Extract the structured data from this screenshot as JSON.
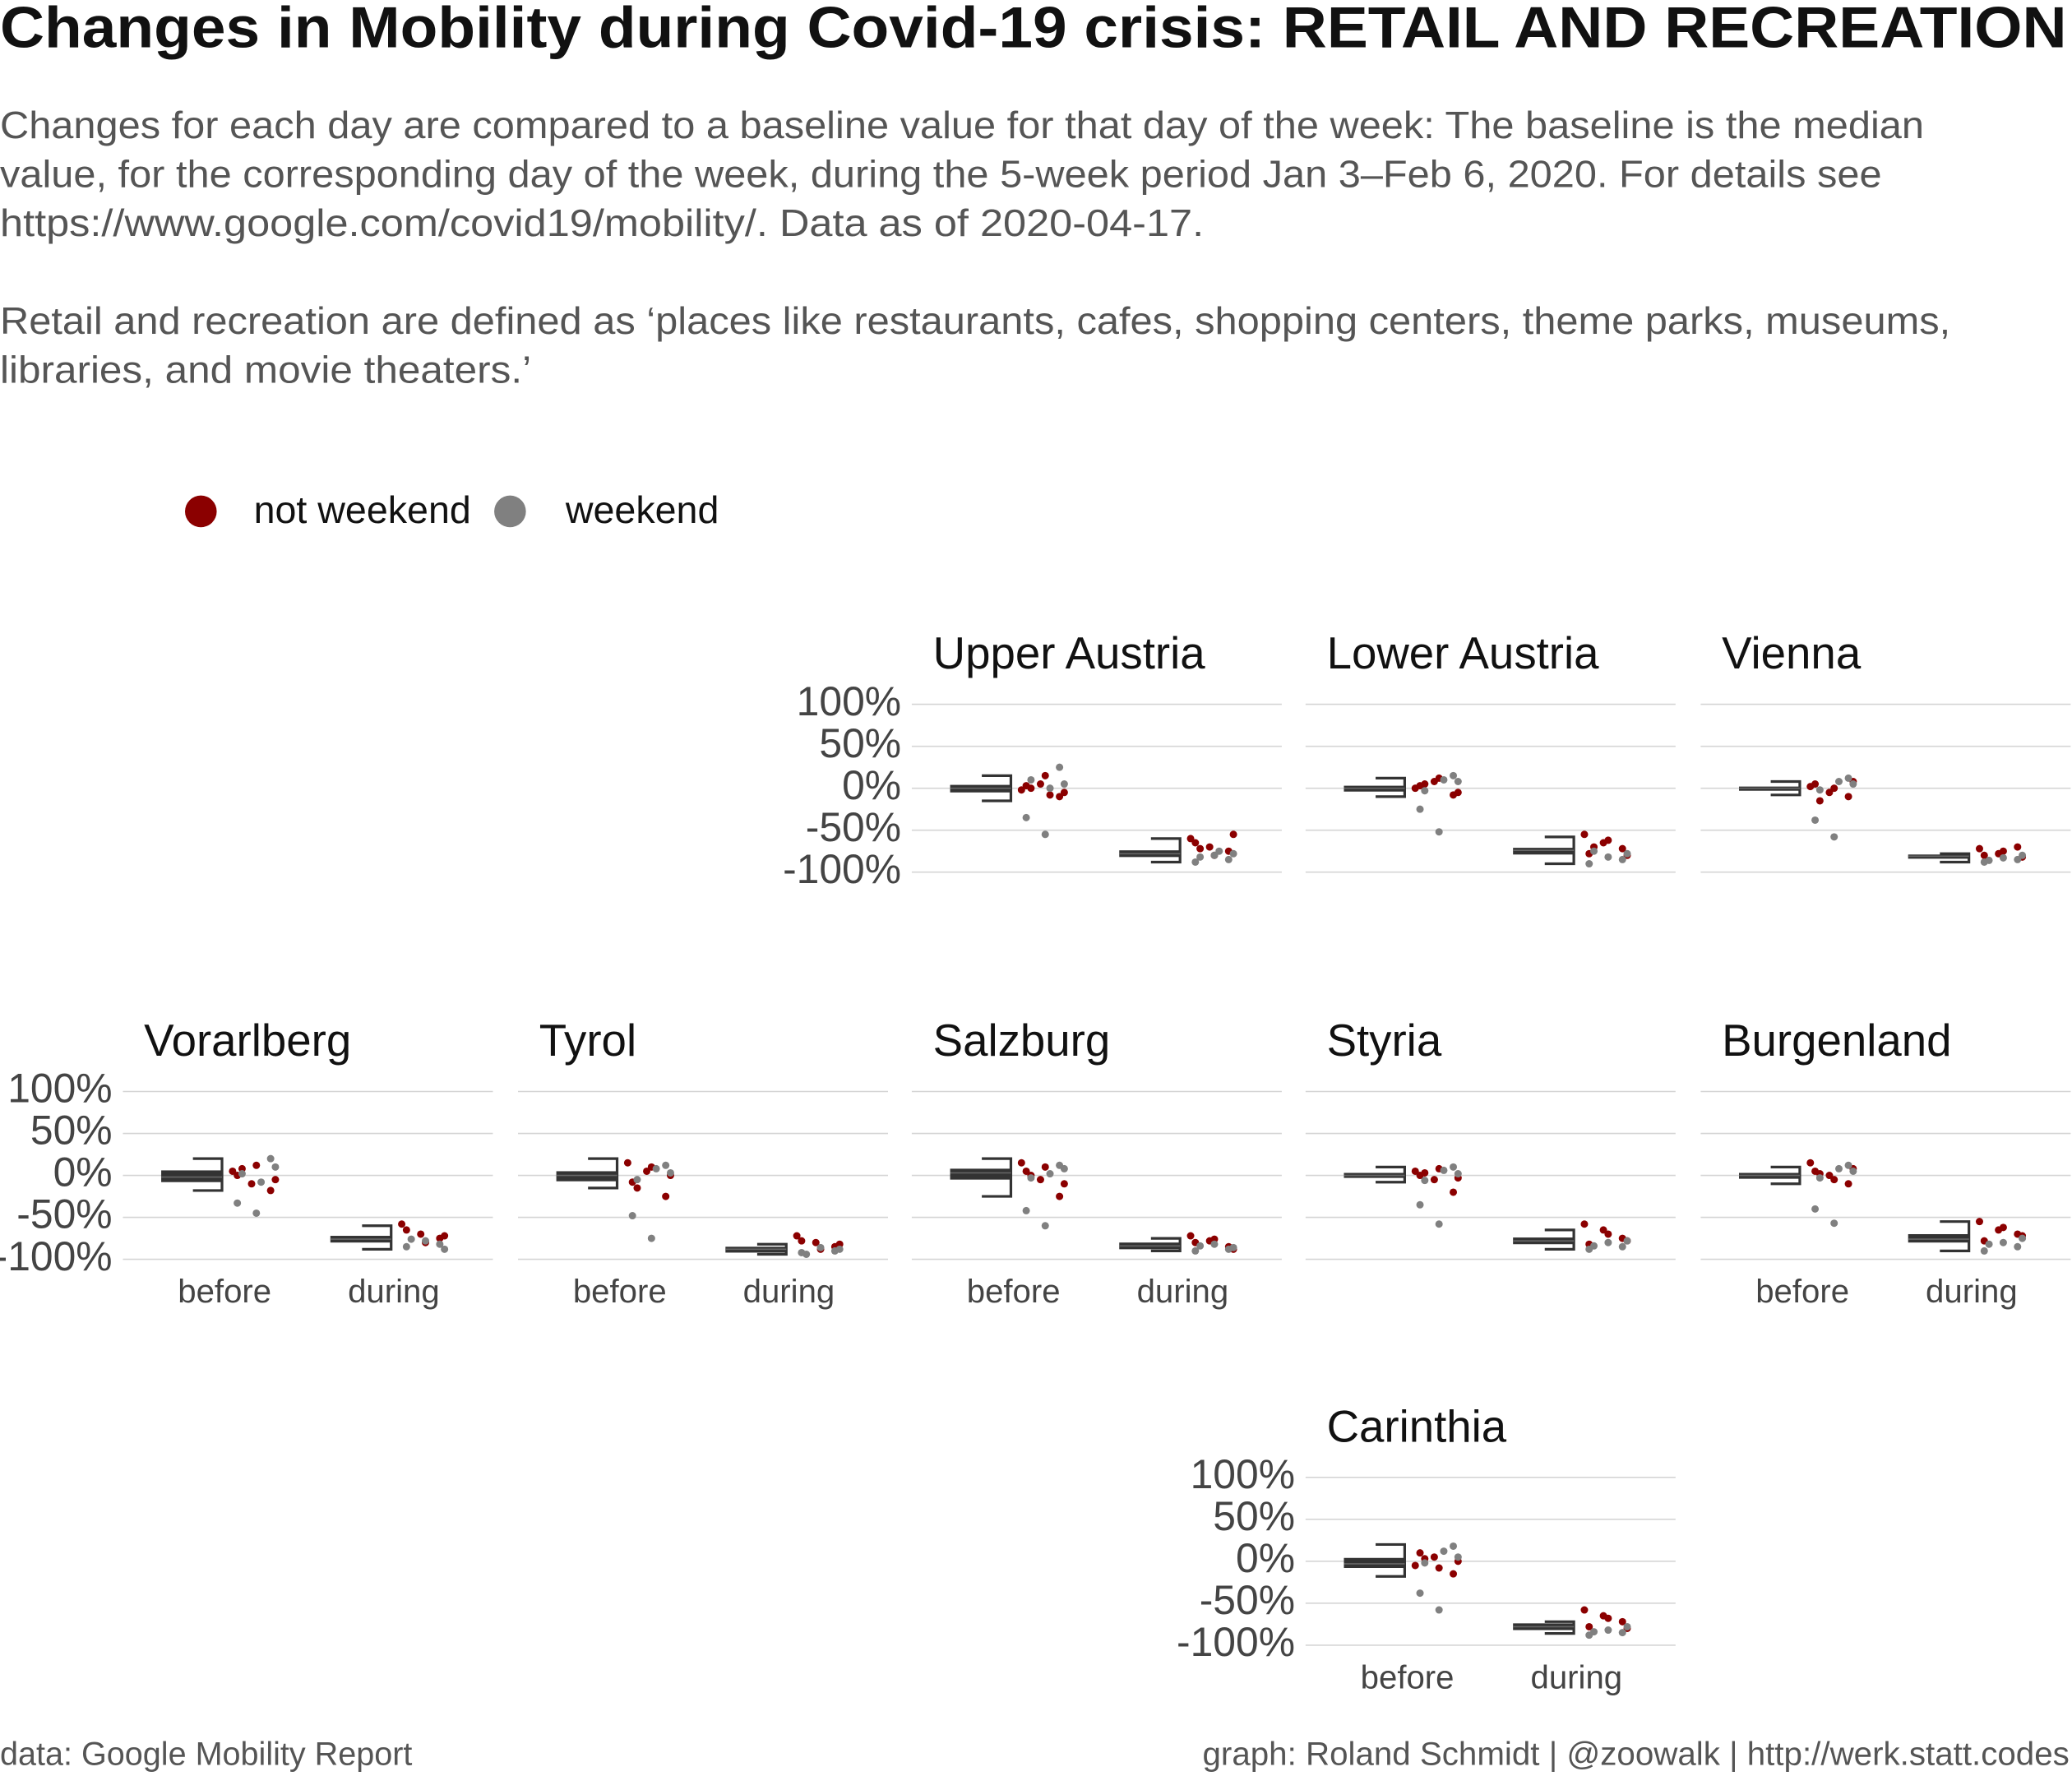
{
  "chart_data": {
    "type": "boxplot",
    "title": "Changes in Mobility during Covid-19 crisis: RETAIL AND RECREATION",
    "subtitle": [
      "Changes for each day are compared to a baseline value for that day of the week: The baseline is the median",
      "value, for the corresponding day of the week, during the 5-week period Jan 3–Feb 6, 2020. For details see",
      "https://www.google.com/covid19/mobility/. Data as of 2020-04-17.",
      "Retail and recreation are defined as ‘places like restaurants, cafes, shopping centers, theme parks, museums,",
      "libraries, and movie theaters.’"
    ],
    "caption_left": "data: Google Mobility Report",
    "caption_right": "graph: Roland Schmidt | @zoowalk | http://werk.statt.codes",
    "series": [
      {
        "name": "not weekend",
        "color": "#8b0000"
      },
      {
        "name": "weekend",
        "color": "#808080"
      }
    ],
    "box_color": "#333333",
    "categories": [
      "before",
      "during"
    ],
    "ylim": [
      -110,
      110
    ],
    "yticks": [
      {
        "value": 100,
        "label": "100%"
      },
      {
        "value": 50,
        "label": "50%"
      },
      {
        "value": 0,
        "label": "0%"
      },
      {
        "value": -50,
        "label": "-50%"
      },
      {
        "value": -100,
        "label": "-100%"
      }
    ],
    "grid": true,
    "facets": [
      {
        "name": "Upper Austria",
        "boxes": [
          [
            -15,
            -5,
            0,
            4,
            15
          ],
          [
            -88,
            -82,
            -78,
            -74,
            -60
          ]
        ],
        "points": [
          [
            [
              -2,
              5,
              -10,
              3,
              15,
              -5,
              0,
              -8
            ],
            [
              -60,
              -70,
              -75,
              -65,
              -80,
              -55,
              -72
            ]
          ],
          [
            [
              25,
              -35,
              -55,
              5,
              10,
              0
            ],
            [
              -85,
              -88,
              -80,
              -78,
              -82,
              -75
            ]
          ]
        ]
      },
      {
        "name": "Lower Austria",
        "boxes": [
          [
            -10,
            -4,
            0,
            3,
            12
          ],
          [
            -90,
            -79,
            -74,
            -71,
            -58
          ]
        ],
        "points": [
          [
            [
              0,
              8,
              -8,
              3,
              12,
              -5,
              5
            ],
            [
              -55,
              -65,
              -72,
              -78,
              -62,
              -80,
              -70
            ]
          ],
          [
            [
              15,
              -25,
              -52,
              8,
              -3,
              10
            ],
            [
              -85,
              -90,
              -82,
              -78,
              -75
            ]
          ]
        ]
      },
      {
        "name": "Vienna",
        "boxes": [
          [
            -8,
            -3,
            0,
            2,
            8
          ],
          [
            -88,
            -84,
            -81,
            -79,
            -78
          ]
        ],
        "points": [
          [
            [
              2,
              -5,
              -10,
              5,
              0,
              8,
              -15
            ],
            [
              -72,
              -78,
              -70,
              -80,
              -75,
              -82
            ]
          ],
          [
            [
              12,
              -38,
              -58,
              5,
              -2,
              8
            ],
            [
              -85,
              -88,
              -83,
              -80,
              -86
            ]
          ]
        ]
      },
      {
        "name": "Vorarlberg",
        "boxes": [
          [
            -18,
            -8,
            -2,
            6,
            20
          ],
          [
            -88,
            -80,
            -76,
            -72,
            -60
          ]
        ],
        "points": [
          [
            [
              5,
              -10,
              -18,
              0,
              12,
              -5,
              8
            ],
            [
              -58,
              -70,
              -75,
              -65,
              -80,
              -72
            ]
          ],
          [
            [
              20,
              -33,
              -45,
              10,
              2,
              -8
            ],
            [
              -82,
              -85,
              -78,
              -88,
              -76
            ]
          ]
        ]
      },
      {
        "name": "Tyrol",
        "boxes": [
          [
            -15,
            -7,
            0,
            5,
            20
          ],
          [
            -94,
            -92,
            -88,
            -85,
            -82
          ]
        ],
        "points": [
          [
            [
              15,
              5,
              -25,
              -8,
              10,
              0,
              -15
            ],
            [
              -72,
              -80,
              -85,
              -78,
              -88,
              -82
            ]
          ],
          [
            [
              12,
              -48,
              -75,
              3,
              -5,
              8
            ],
            [
              -90,
              -92,
              -86,
              -88,
              -94
            ]
          ]
        ]
      },
      {
        "name": "Salzburg",
        "boxes": [
          [
            -25,
            -5,
            3,
            8,
            20
          ],
          [
            -90,
            -88,
            -84,
            -80,
            -75
          ]
        ],
        "points": [
          [
            [
              15,
              -5,
              -25,
              5,
              10,
              -10,
              0
            ],
            [
              -72,
              -78,
              -85,
              -80,
              -76,
              -88
            ]
          ],
          [
            [
              12,
              -42,
              -60,
              8,
              -3,
              2
            ],
            [
              -88,
              -90,
              -82,
              -86,
              -84
            ]
          ]
        ]
      },
      {
        "name": "Styria",
        "boxes": [
          [
            -8,
            -3,
            0,
            3,
            10
          ],
          [
            -88,
            -82,
            -78,
            -74,
            -65
          ]
        ],
        "points": [
          [
            [
              5,
              -5,
              -20,
              0,
              8,
              -3,
              3
            ],
            [
              -58,
              -65,
              -75,
              -82,
              -70,
              -78
            ]
          ],
          [
            [
              10,
              -35,
              -58,
              2,
              -6,
              6
            ],
            [
              -85,
              -88,
              -80,
              -78,
              -84
            ]
          ]
        ]
      },
      {
        "name": "Burgenland",
        "boxes": [
          [
            -10,
            -4,
            0,
            3,
            10
          ],
          [
            -90,
            -80,
            -76,
            -70,
            -55
          ]
        ],
        "points": [
          [
            [
              15,
              0,
              -10,
              5,
              -5,
              8,
              2
            ],
            [
              -55,
              -65,
              -70,
              -78,
              -62,
              -72
            ]
          ],
          [
            [
              12,
              -40,
              -57,
              5,
              -3,
              8
            ],
            [
              -85,
              -90,
              -80,
              -75,
              -82
            ]
          ]
        ]
      },
      {
        "name": "Carinthia",
        "boxes": [
          [
            -18,
            -8,
            -3,
            4,
            20
          ],
          [
            -86,
            -82,
            -78,
            -74,
            -72
          ]
        ],
        "points": [
          [
            [
              -5,
              5,
              -15,
              10,
              -8,
              0,
              3
            ],
            [
              -58,
              -65,
              -72,
              -78,
              -68,
              -80
            ]
          ],
          [
            [
              18,
              -38,
              -58,
              5,
              -2,
              12
            ],
            [
              -85,
              -88,
              -82,
              -78,
              -84
            ]
          ]
        ]
      }
    ]
  }
}
